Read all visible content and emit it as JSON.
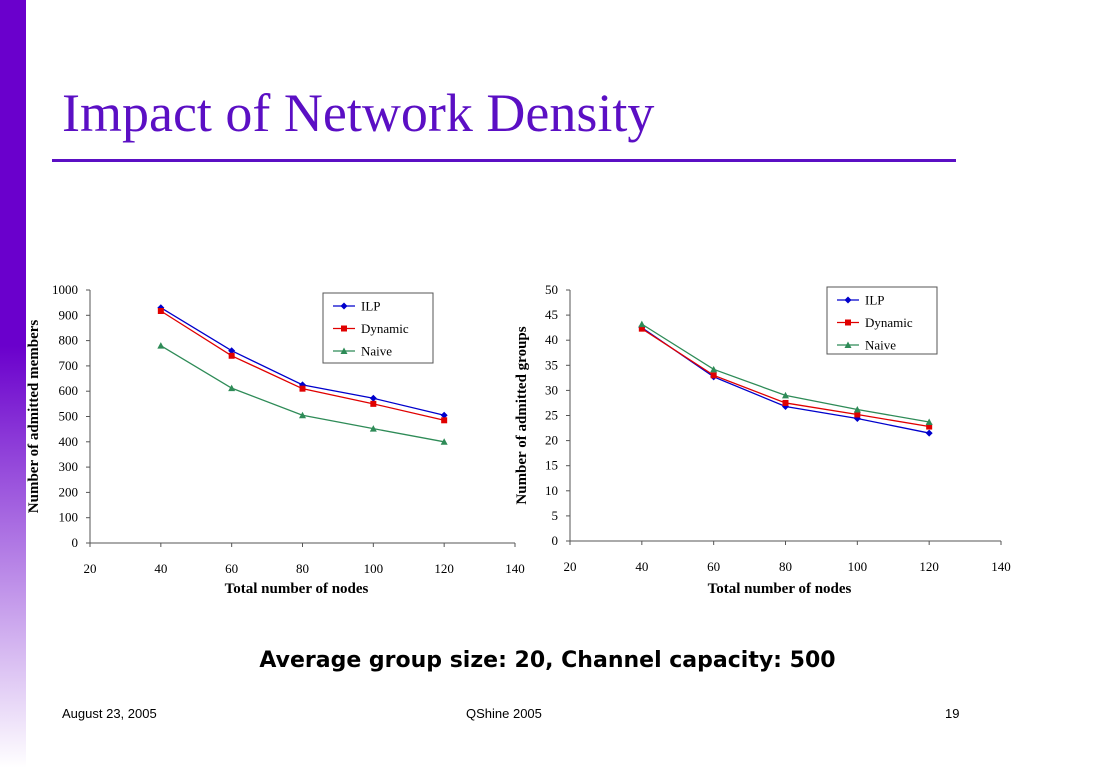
{
  "slide": {
    "title": "Impact of Network Density",
    "subtitle": "Average group size: 20, Channel capacity: 500",
    "accent_color": "#5b0fc4",
    "sidebar_color": "#6a00cc"
  },
  "footer": {
    "date": "August 23, 2005",
    "conference": "QShine 2005",
    "page": "19"
  },
  "chart_data": [
    {
      "type": "line",
      "title": "",
      "xlabel": "Total number of nodes",
      "ylabel": "Number of admitted members",
      "xlim": [
        20,
        140
      ],
      "ylim": [
        0,
        1000
      ],
      "xticks": [
        20,
        40,
        60,
        80,
        100,
        120,
        140
      ],
      "yticks": [
        0,
        100,
        200,
        300,
        400,
        500,
        600,
        700,
        800,
        900,
        1000
      ],
      "legend_position": "top-right",
      "grid": false,
      "x": [
        40,
        60,
        80,
        100,
        120
      ],
      "series": [
        {
          "name": "ILP",
          "values": [
            930,
            760,
            625,
            572,
            505
          ],
          "color": "#0000cc",
          "marker": "diamond"
        },
        {
          "name": "Dynamic",
          "values": [
            917,
            740,
            610,
            550,
            485
          ],
          "color": "#e00000",
          "marker": "square"
        },
        {
          "name": "Naive",
          "values": [
            780,
            612,
            505,
            452,
            400
          ],
          "color": "#2e8b57",
          "marker": "triangle"
        }
      ]
    },
    {
      "type": "line",
      "title": "",
      "xlabel": "Total number of nodes",
      "ylabel": "Number of admitted groups",
      "xlim": [
        20,
        140
      ],
      "ylim": [
        0,
        50
      ],
      "xticks": [
        20,
        40,
        60,
        80,
        100,
        120,
        140
      ],
      "yticks": [
        0,
        5,
        10,
        15,
        20,
        25,
        30,
        35,
        40,
        45,
        50
      ],
      "legend_position": "top-right",
      "grid": false,
      "x": [
        40,
        60,
        80,
        100,
        120
      ],
      "series": [
        {
          "name": "ILP",
          "values": [
            42.5,
            32.7,
            26.8,
            24.4,
            21.5
          ],
          "color": "#0000cc",
          "marker": "diamond"
        },
        {
          "name": "Dynamic",
          "values": [
            42.3,
            33.0,
            27.5,
            25.2,
            22.8
          ],
          "color": "#e00000",
          "marker": "square"
        },
        {
          "name": "Naive",
          "values": [
            43.2,
            34.2,
            29.0,
            26.2,
            23.7
          ],
          "color": "#2e8b57",
          "marker": "triangle"
        }
      ]
    }
  ]
}
